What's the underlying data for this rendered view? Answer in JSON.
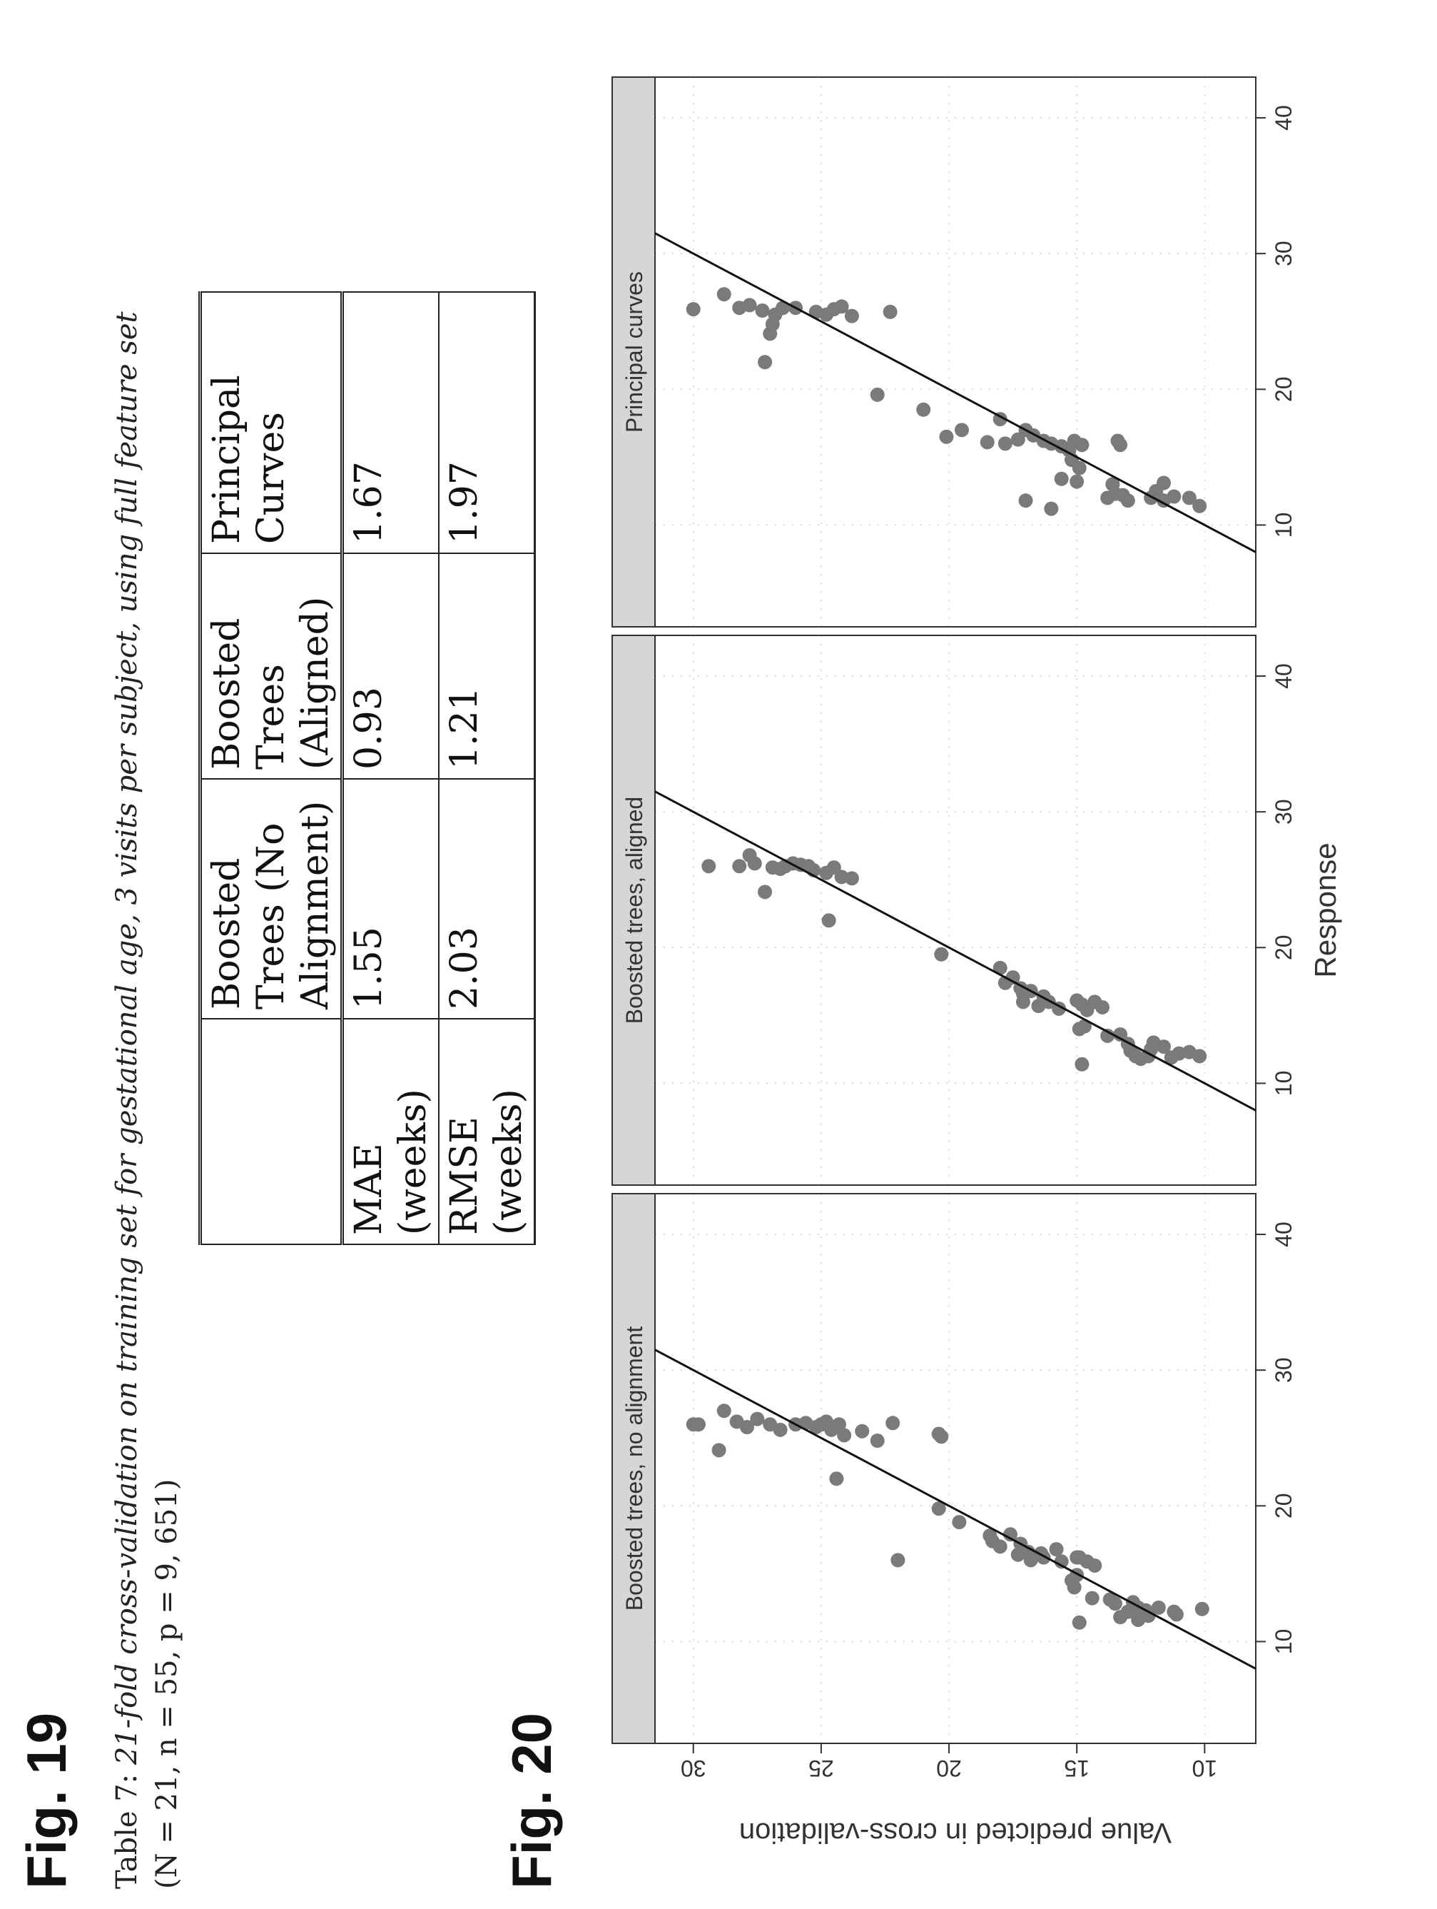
{
  "fig19": {
    "label": "Fig. 19",
    "caption": {
      "lead": "Table 7: ",
      "text": "21-fold cross-validation on training set for gestational age, 3 visits per subject, using full feature set",
      "params": "(N = 21, n = 55, p = 9, 651)"
    },
    "table": {
      "headers": [
        "",
        "Boosted Trees (No Alignment)",
        "Boosted Trees (Aligned)",
        "Principal Curves"
      ],
      "rows": [
        [
          "MAE (weeks)",
          "1.55",
          "0.93",
          "1.67"
        ],
        [
          "RMSE (weeks)",
          "2.03",
          "1.21",
          "1.97"
        ]
      ]
    }
  },
  "fig20": {
    "label": "Fig. 20"
  },
  "chart_data": {
    "type": "scatter",
    "ylabel": "Value predicted in cross-validation",
    "xlabel": "Response",
    "xlim": [
      2.5,
      43
    ],
    "ylim": [
      8,
      31.5
    ],
    "xticks": [
      10,
      20,
      30,
      40
    ],
    "yticks": [
      10,
      15,
      20,
      25,
      30
    ],
    "colors": {
      "points": "#7a7a7a",
      "line": "#111111",
      "strip": "#d6d6d6",
      "grid": "#d0d0d0"
    },
    "reference_line": {
      "from": [
        8,
        8
      ],
      "to": [
        31.5,
        31.5
      ]
    },
    "panels": [
      {
        "title": "Boosted trees, no alignment",
        "points": [
          [
            26.0,
            30.0
          ],
          [
            26.0,
            29.8
          ],
          [
            24.1,
            29.0
          ],
          [
            27.0,
            28.8
          ],
          [
            26.2,
            28.3
          ],
          [
            25.8,
            27.9
          ],
          [
            26.4,
            27.5
          ],
          [
            26.0,
            27.0
          ],
          [
            25.6,
            26.6
          ],
          [
            26.0,
            26.0
          ],
          [
            26.1,
            25.6
          ],
          [
            25.8,
            25.2
          ],
          [
            26.0,
            25.0
          ],
          [
            26.2,
            24.8
          ],
          [
            26.0,
            24.3
          ],
          [
            25.6,
            24.6
          ],
          [
            25.2,
            24.1
          ],
          [
            22.0,
            24.4
          ],
          [
            25.5,
            23.4
          ],
          [
            24.8,
            22.8
          ],
          [
            26.1,
            22.2
          ],
          [
            25.3,
            20.4
          ],
          [
            25.1,
            20.3
          ],
          [
            16.0,
            22.0
          ],
          [
            19.8,
            20.4
          ],
          [
            18.8,
            19.6
          ],
          [
            17.8,
            18.4
          ],
          [
            17.4,
            18.3
          ],
          [
            17.0,
            18.0
          ],
          [
            17.9,
            17.6
          ],
          [
            17.2,
            17.2
          ],
          [
            16.4,
            17.3
          ],
          [
            16.6,
            16.9
          ],
          [
            16.0,
            16.8
          ],
          [
            16.2,
            16.3
          ],
          [
            16.5,
            16.4
          ],
          [
            15.9,
            15.6
          ],
          [
            16.8,
            15.8
          ],
          [
            14.9,
            15.0
          ],
          [
            14.5,
            15.2
          ],
          [
            16.2,
            15.0
          ],
          [
            15.9,
            14.6
          ],
          [
            15.6,
            14.3
          ],
          [
            16.2,
            14.9
          ],
          [
            14.0,
            15.1
          ],
          [
            13.2,
            14.4
          ],
          [
            13.1,
            13.7
          ],
          [
            12.8,
            13.5
          ],
          [
            12.2,
            13.0
          ],
          [
            12.9,
            12.8
          ],
          [
            12.5,
            12.6
          ],
          [
            12.0,
            12.6
          ],
          [
            11.8,
            13.3
          ],
          [
            11.4,
            14.9
          ],
          [
            12.3,
            12.3
          ],
          [
            11.9,
            12.2
          ],
          [
            12.5,
            11.8
          ],
          [
            12.2,
            11.2
          ],
          [
            12.0,
            11.1
          ],
          [
            12.4,
            10.1
          ],
          [
            11.6,
            12.6
          ]
        ]
      },
      {
        "title": "Boosted trees, aligned",
        "points": [
          [
            26.0,
            29.4
          ],
          [
            26.0,
            28.2
          ],
          [
            26.8,
            27.8
          ],
          [
            26.2,
            27.6
          ],
          [
            24.1,
            27.2
          ],
          [
            25.9,
            26.9
          ],
          [
            25.8,
            26.6
          ],
          [
            26.0,
            26.4
          ],
          [
            26.2,
            26.1
          ],
          [
            26.1,
            25.8
          ],
          [
            26.0,
            25.5
          ],
          [
            25.7,
            25.3
          ],
          [
            25.5,
            24.8
          ],
          [
            25.9,
            24.5
          ],
          [
            25.2,
            24.2
          ],
          [
            25.1,
            23.8
          ],
          [
            22.0,
            24.7
          ],
          [
            19.5,
            20.3
          ],
          [
            18.5,
            18.0
          ],
          [
            17.8,
            17.5
          ],
          [
            17.4,
            17.8
          ],
          [
            17.0,
            17.2
          ],
          [
            16.6,
            17.1
          ],
          [
            16.0,
            17.1
          ],
          [
            16.8,
            16.8
          ],
          [
            16.4,
            16.3
          ],
          [
            16.0,
            16.1
          ],
          [
            15.7,
            16.5
          ],
          [
            15.5,
            15.7
          ],
          [
            16.1,
            15.0
          ],
          [
            15.8,
            14.8
          ],
          [
            15.4,
            14.6
          ],
          [
            16.0,
            14.3
          ],
          [
            15.6,
            14.0
          ],
          [
            14.2,
            14.7
          ],
          [
            14.0,
            14.9
          ],
          [
            13.5,
            13.8
          ],
          [
            13.6,
            13.3
          ],
          [
            12.9,
            13.0
          ],
          [
            12.4,
            12.9
          ],
          [
            12.0,
            12.7
          ],
          [
            11.8,
            12.5
          ],
          [
            11.4,
            14.8
          ],
          [
            12.0,
            12.2
          ],
          [
            11.9,
            11.3
          ],
          [
            12.2,
            11.0
          ],
          [
            12.5,
            12.1
          ],
          [
            12.0,
            10.2
          ],
          [
            12.3,
            10.6
          ],
          [
            13.0,
            12.0
          ],
          [
            12.7,
            11.6
          ]
        ]
      },
      {
        "title": "Principal curves",
        "points": [
          [
            25.9,
            30.0
          ],
          [
            27.0,
            28.8
          ],
          [
            26.0,
            28.2
          ],
          [
            26.2,
            27.8
          ],
          [
            25.8,
            27.3
          ],
          [
            26.0,
            26.5
          ],
          [
            25.5,
            26.8
          ],
          [
            24.1,
            27.0
          ],
          [
            22.0,
            27.2
          ],
          [
            24.8,
            26.9
          ],
          [
            26.0,
            26.0
          ],
          [
            25.7,
            25.2
          ],
          [
            25.5,
            24.8
          ],
          [
            25.9,
            24.5
          ],
          [
            26.1,
            24.2
          ],
          [
            25.4,
            23.8
          ],
          [
            25.7,
            22.3
          ],
          [
            19.6,
            22.8
          ],
          [
            18.5,
            21.0
          ],
          [
            17.0,
            19.5
          ],
          [
            16.5,
            20.1
          ],
          [
            17.8,
            18.0
          ],
          [
            16.1,
            18.5
          ],
          [
            16.0,
            17.8
          ],
          [
            16.3,
            17.3
          ],
          [
            17.0,
            17.0
          ],
          [
            16.6,
            16.7
          ],
          [
            16.2,
            16.3
          ],
          [
            16.0,
            16.0
          ],
          [
            15.8,
            15.6
          ],
          [
            15.5,
            15.3
          ],
          [
            16.2,
            15.1
          ],
          [
            15.9,
            14.8
          ],
          [
            14.8,
            15.2
          ],
          [
            14.2,
            14.9
          ],
          [
            13.4,
            15.6
          ],
          [
            13.2,
            15.0
          ],
          [
            11.8,
            17.0
          ],
          [
            11.2,
            16.0
          ],
          [
            13.0,
            13.6
          ],
          [
            16.2,
            13.4
          ],
          [
            15.9,
            13.3
          ],
          [
            12.0,
            13.8
          ],
          [
            12.2,
            13.2
          ],
          [
            11.8,
            13.0
          ],
          [
            12.3,
            13.5
          ],
          [
            12.0,
            12.1
          ],
          [
            12.5,
            11.9
          ],
          [
            11.8,
            11.6
          ],
          [
            12.1,
            11.2
          ],
          [
            11.4,
            10.2
          ],
          [
            13.1,
            11.6
          ],
          [
            12.0,
            10.6
          ]
        ]
      }
    ]
  }
}
